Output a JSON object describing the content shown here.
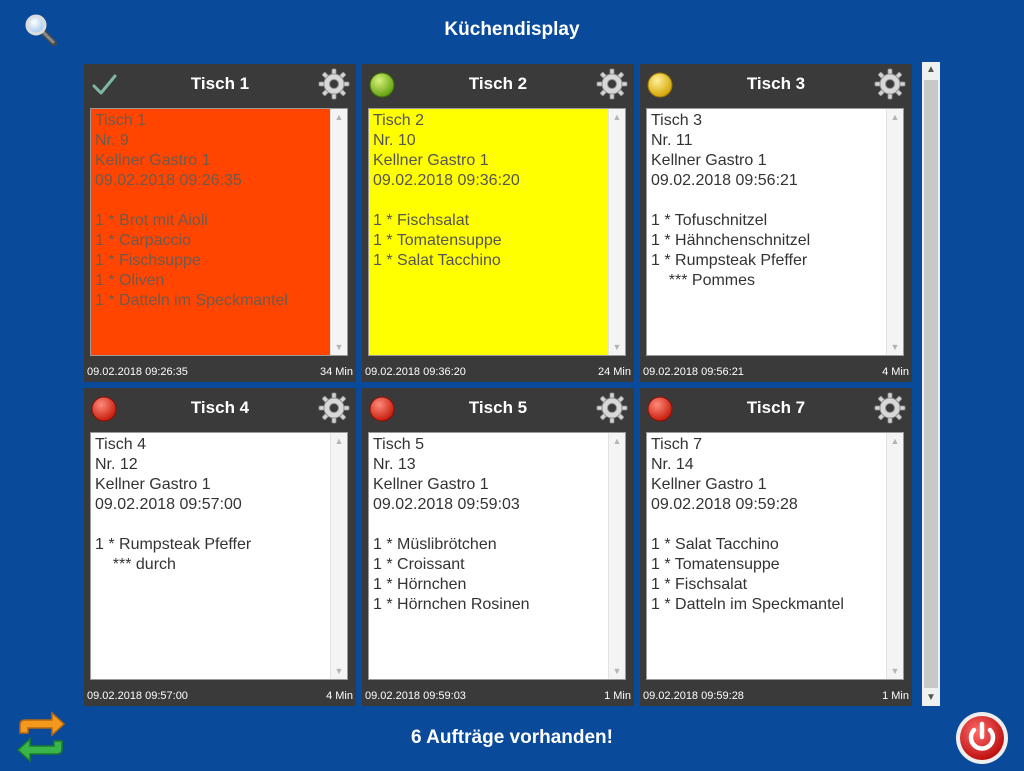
{
  "header": {
    "title": "Küchendisplay",
    "search_icon": "search-icon"
  },
  "orders": [
    {
      "title": "Tisch 1",
      "status": "done",
      "status_icon": "checkmark-icon",
      "box_color": "#ff4500",
      "lines": [
        "Tisch 1",
        "Nr. 9",
        "Kellner Gastro 1",
        "09.02.2018 09:26:35",
        "",
        "1 * Brot mit Aioli",
        "1 * Carpaccio",
        "1 * Fischsuppe",
        "1 * Oliven",
        "1 * Datteln im Speckmantel"
      ],
      "time": "09.02.2018 09:26:35",
      "elapsed": "34 Min"
    },
    {
      "title": "Tisch 2",
      "status": "in-progress",
      "status_icon": "green-dot-icon",
      "box_color": "#ffff00",
      "lines": [
        "Tisch 2",
        "Nr. 10",
        "Kellner Gastro 1",
        "09.02.2018 09:36:20",
        "",
        "1 * Fischsalat",
        "1 * Tomatensuppe",
        "1 * Salat Tacchino"
      ],
      "time": "09.02.2018 09:36:20",
      "elapsed": "24 Min"
    },
    {
      "title": "Tisch 3",
      "status": "waiting",
      "status_icon": "yellow-dot-icon",
      "box_color": "#ffffff",
      "lines": [
        "Tisch 3",
        "Nr. 11",
        "Kellner Gastro 1",
        "09.02.2018 09:56:21",
        "",
        "1 * Tofuschnitzel",
        "1 * Hähnchenschnitzel",
        "1 * Rumpsteak Pfeffer",
        "    *** Pommes"
      ],
      "time": "09.02.2018 09:56:21",
      "elapsed": "4 Min"
    },
    {
      "title": "Tisch 4",
      "status": "new",
      "status_icon": "red-dot-icon",
      "box_color": "#ffffff",
      "lines": [
        "Tisch 4",
        "Nr. 12",
        "Kellner Gastro 1",
        "09.02.2018 09:57:00",
        "",
        "1 * Rumpsteak Pfeffer",
        "    *** durch"
      ],
      "time": "09.02.2018 09:57:00",
      "elapsed": "4 Min"
    },
    {
      "title": "Tisch 5",
      "status": "new",
      "status_icon": "red-dot-icon",
      "box_color": "#ffffff",
      "lines": [
        "Tisch 5",
        "Nr. 13",
        "Kellner Gastro 1",
        "09.02.2018 09:59:03",
        "",
        "1 * Müslibrötchen",
        "1 * Croissant",
        "1 * Hörnchen",
        "1 * Hörnchen Rosinen"
      ],
      "time": "09.02.2018 09:59:03",
      "elapsed": "1 Min"
    },
    {
      "title": "Tisch 7",
      "status": "new",
      "status_icon": "red-dot-icon",
      "box_color": "#ffffff",
      "lines": [
        "Tisch 7",
        "Nr. 14",
        "Kellner Gastro 1",
        "09.02.2018 09:59:28",
        "",
        "1 * Salat Tacchino",
        "1 * Tomatensuppe",
        "1 * Fischsalat",
        "1 * Datteln im Speckmantel"
      ],
      "time": "09.02.2018 09:59:28",
      "elapsed": "1 Min"
    }
  ],
  "footer": {
    "status": "6 Aufträge vorhanden!",
    "refresh_icon": "refresh-icon",
    "power_icon": "power-icon"
  },
  "colors": {
    "background": "#0a4a9b",
    "card": "#3a3a3a",
    "late": "#ff4500",
    "in_progress": "#ffff00"
  }
}
